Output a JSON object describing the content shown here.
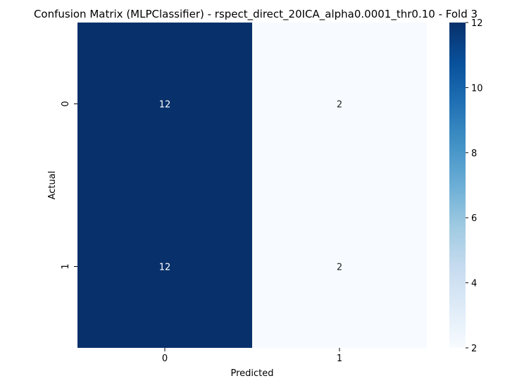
{
  "chart_data": {
    "type": "heatmap",
    "title": "Confusion Matrix (MLPClassifier) - rspect_direct_20ICA_alpha0.0001_thr0.10 - Fold 3",
    "xlabel": "Predicted",
    "ylabel": "Actual",
    "x_categories": [
      "0",
      "1"
    ],
    "y_categories": [
      "0",
      "1"
    ],
    "values": [
      [
        12,
        2
      ],
      [
        12,
        2
      ]
    ],
    "colormap": "Blues",
    "colorbar": {
      "min": 2,
      "max": 12,
      "ticks": [
        "2",
        "4",
        "6",
        "8",
        "10",
        "12"
      ]
    },
    "colors": {
      "high": "#08306b",
      "low": "#f7fbff"
    }
  }
}
